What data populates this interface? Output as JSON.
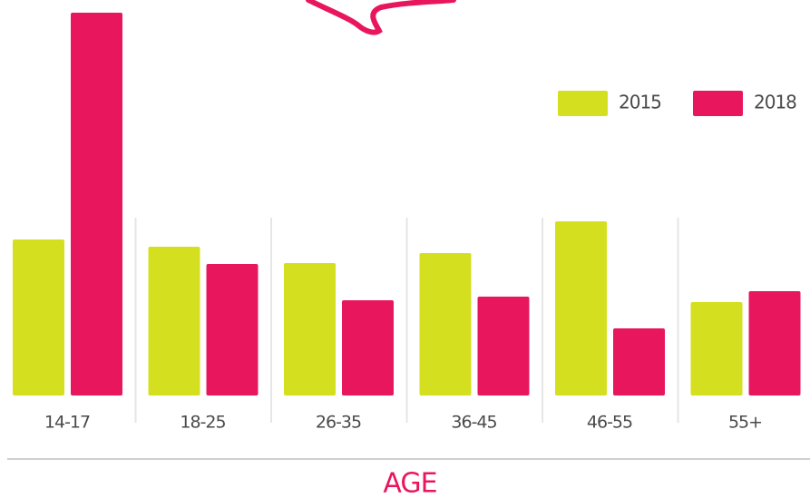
{
  "chart_data": {
    "type": "bar",
    "x_label": "AGE",
    "categories": [
      "14-17",
      "18-25",
      "26-35",
      "36-45",
      "46-55",
      "55+"
    ],
    "series": [
      {
        "name": "2015",
        "color": "#d4e01f",
        "values": [
          172,
          164,
          146,
          157,
          192,
          103
        ]
      },
      {
        "name": "2018",
        "color": "#e8175d",
        "values": [
          422,
          145,
          105,
          109,
          74,
          115
        ]
      }
    ],
    "ylim": [
      0,
      436
    ]
  }
}
